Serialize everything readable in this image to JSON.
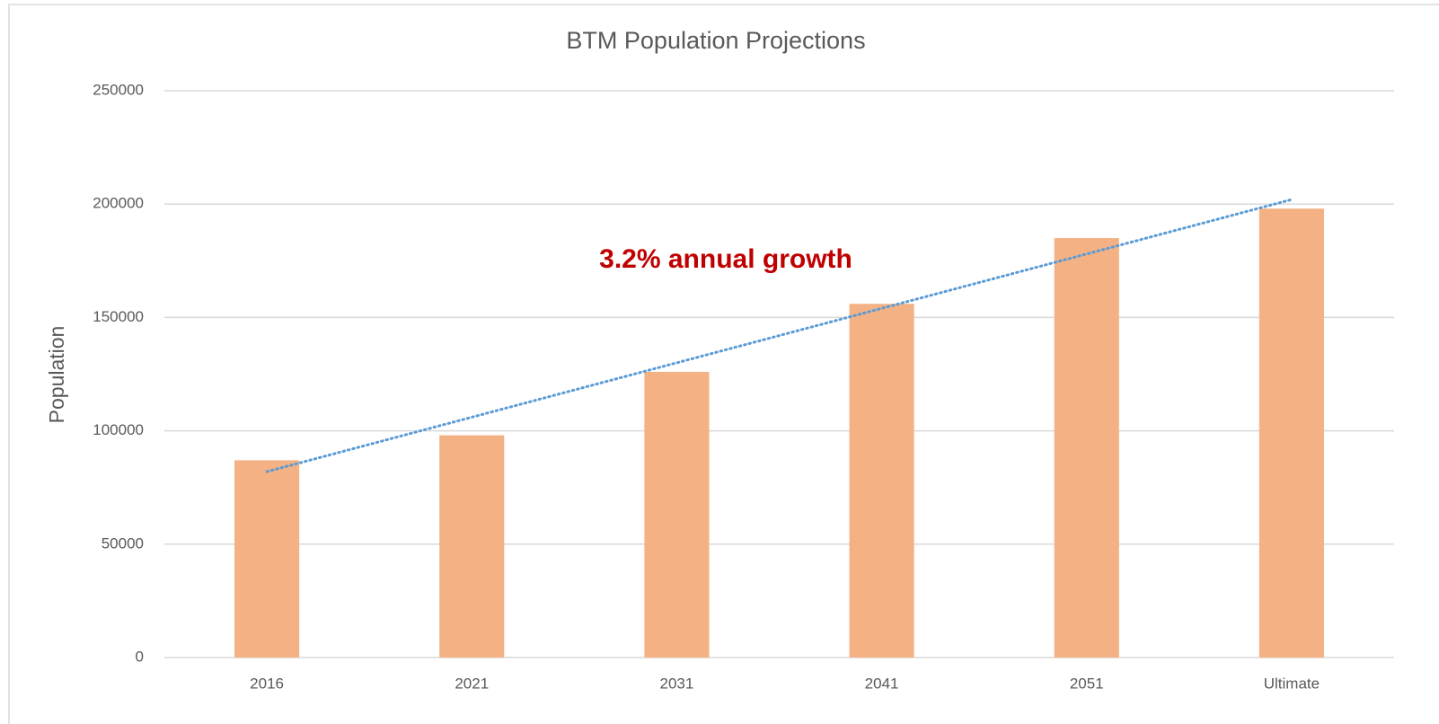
{
  "chart_data": {
    "type": "bar",
    "title": "BTM Population Projections",
    "y_label": "Population",
    "annotation": "3.2% annual growth",
    "categories": [
      "2016",
      "2021",
      "2031",
      "2041",
      "2051",
      "Ultimate"
    ],
    "values": [
      87000,
      98000,
      126000,
      156000,
      185000,
      198000
    ],
    "color": "#f4b183",
    "trendline": {
      "color": "#5b9bd5",
      "values": [
        82000,
        202000
      ]
    },
    "ylim": [
      0,
      250000
    ],
    "yticks": [
      0,
      50000,
      100000,
      150000,
      200000,
      250000
    ],
    "grid": true
  }
}
